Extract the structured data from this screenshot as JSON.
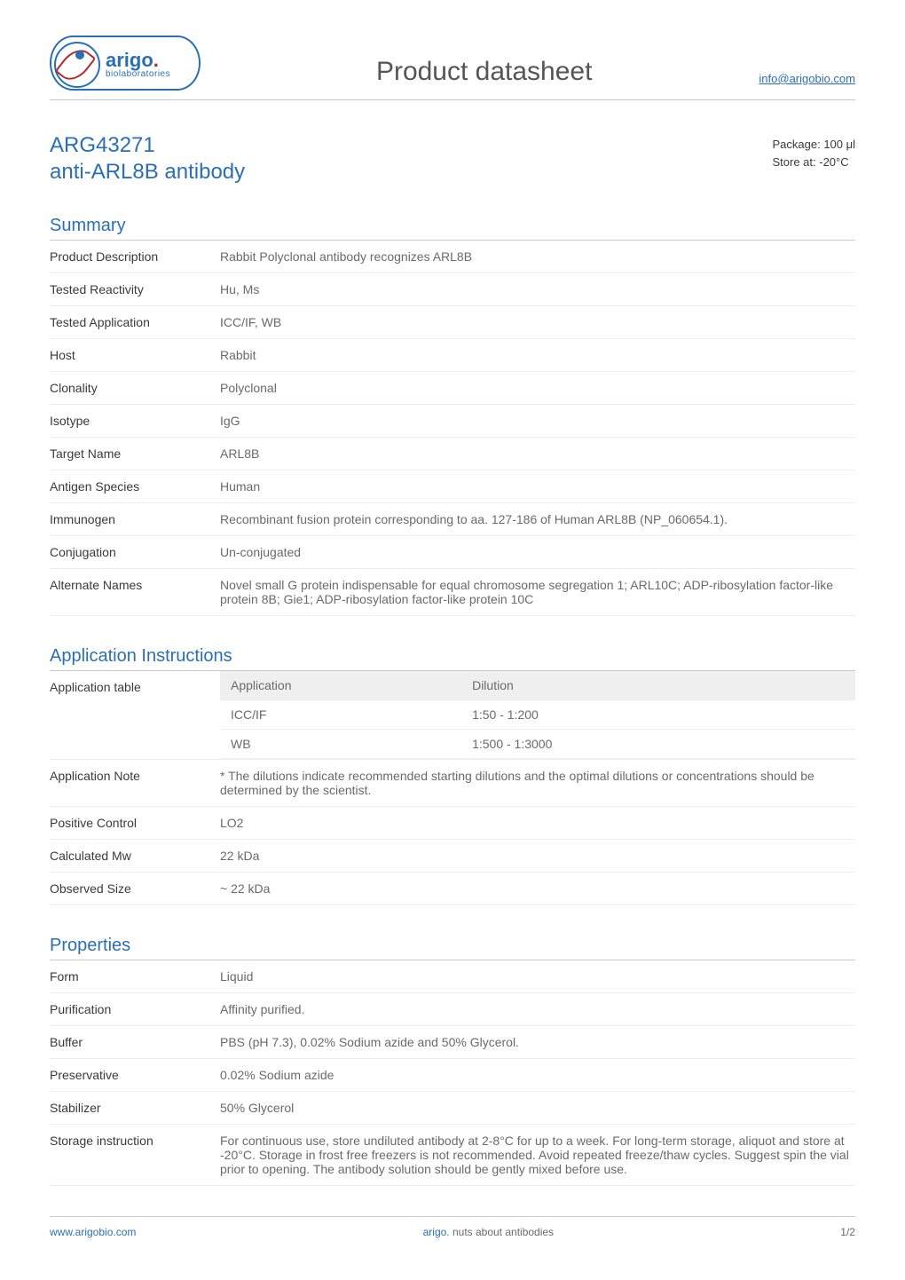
{
  "header": {
    "logo_brand": "arigo",
    "logo_sub": "biolaboratories",
    "title": "Product datasheet",
    "link": "info@arigobio.com"
  },
  "title_block": {
    "product_id": "ARG43271",
    "product_name": "anti-ARL8B antibody",
    "package": "Package: 100 μl",
    "store": "Store at: -20°C"
  },
  "summary": {
    "heading": "Summary",
    "rows": [
      {
        "key": "Product Description",
        "val": "Rabbit Polyclonal antibody recognizes ARL8B"
      },
      {
        "key": "Tested Reactivity",
        "val": "Hu, Ms"
      },
      {
        "key": "Tested Application",
        "val": "ICC/IF, WB"
      },
      {
        "key": "Host",
        "val": "Rabbit"
      },
      {
        "key": "Clonality",
        "val": "Polyclonal"
      },
      {
        "key": "Isotype",
        "val": "IgG"
      },
      {
        "key": "Target Name",
        "val": "ARL8B"
      },
      {
        "key": "Antigen Species",
        "val": "Human"
      },
      {
        "key": "Immunogen",
        "val": "Recombinant fusion protein corresponding to aa. 127-186 of Human ARL8B (NP_060654.1)."
      },
      {
        "key": "Conjugation",
        "val": "Un-conjugated"
      },
      {
        "key": "Alternate Names",
        "val": "Novel small G protein indispensable for equal chromosome segregation 1; ARL10C; ADP-ribosylation factor-like protein 8B; Gie1; ADP-ribosylation factor-like protein 10C"
      }
    ]
  },
  "app_instructions": {
    "heading": "Application Instructions",
    "table": {
      "label": "Application table",
      "columns": [
        "Application",
        "Dilution"
      ],
      "rows": [
        [
          "ICC/IF",
          "1:50 - 1:200"
        ],
        [
          "WB",
          "1:500 - 1:3000"
        ]
      ]
    },
    "rows": [
      {
        "key": "Application Note",
        "val": "* The dilutions indicate recommended starting dilutions and the optimal dilutions or concentrations should be determined by the scientist."
      },
      {
        "key": "Positive Control",
        "val": "LO2"
      },
      {
        "key": "Calculated Mw",
        "val": "22 kDa"
      },
      {
        "key": "Observed Size",
        "val": "~ 22 kDa"
      }
    ]
  },
  "properties": {
    "heading": "Properties",
    "rows": [
      {
        "key": "Form",
        "val": "Liquid"
      },
      {
        "key": "Purification",
        "val": "Affinity purified."
      },
      {
        "key": "Buffer",
        "val": "PBS (pH 7.3), 0.02% Sodium azide and 50% Glycerol."
      },
      {
        "key": "Preservative",
        "val": "0.02% Sodium azide"
      },
      {
        "key": "Stabilizer",
        "val": "50% Glycerol"
      },
      {
        "key": "Storage instruction",
        "val": "For continuous use, store undiluted antibody at 2-8°C for up to a week. For long-term storage, aliquot and store at -20°C. Storage in frost free freezers is not recommended. Avoid repeated freeze/thaw cycles. Suggest spin the vial prior to opening. The antibody solution should be gently mixed before use."
      }
    ]
  },
  "footer": {
    "site": "www.arigobio.com",
    "tagline_brand": "arigo",
    "tagline_rest": ". nuts about antibodies",
    "page": "1/2"
  },
  "colors": {
    "accent": "#2a6fb5",
    "text": "#3a3a3a",
    "muted": "#6a6a6a",
    "border": "#c9c9c9",
    "row_border": "#eeeeee",
    "th_bg": "#efefef",
    "red": "#b22a2a"
  }
}
